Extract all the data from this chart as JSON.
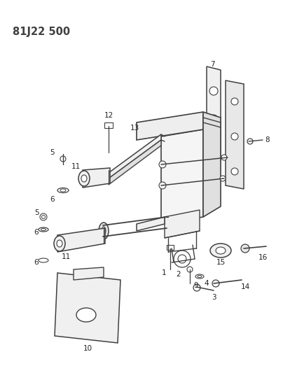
{
  "title": "81J22 500",
  "bg_color": "#ffffff",
  "line_color": "#404040",
  "title_fontsize": 10.5,
  "label_fontsize": 7.5,
  "fig_width": 4.04,
  "fig_height": 5.33,
  "dpi": 100
}
